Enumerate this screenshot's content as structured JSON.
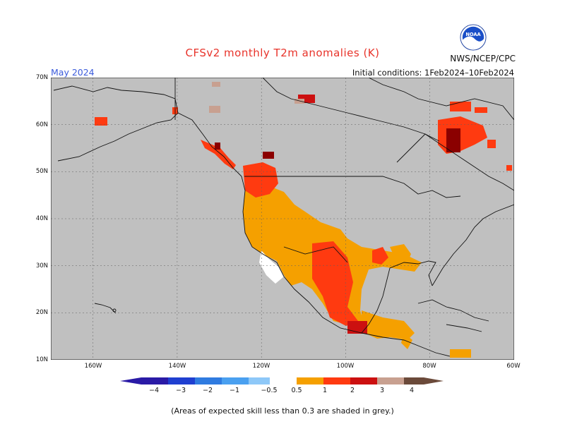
{
  "header": {
    "title": "CFSv2 monthly T2m anomalies (K)",
    "month": "May 2024",
    "initial_conditions": "Initial conditions: 1Feb2024–10Feb2024",
    "agency": "NWS/NCEP/CPC",
    "logo_icon": "noaa-logo-icon",
    "logo_text": "NOAA"
  },
  "map": {
    "projection": "lat-lon",
    "lon_range": [
      -170,
      -60
    ],
    "lat_range": [
      10,
      70
    ],
    "grid": "dashed",
    "lat_labels": [
      "70N",
      "60N",
      "50N",
      "40N",
      "30N",
      "20N",
      "10N"
    ],
    "lon_labels": [
      "160W",
      "140W",
      "120W",
      "100W",
      "80W",
      "60W"
    ],
    "background_color": "#c0c0c0"
  },
  "colorbar": {
    "tick_labels": [
      "−4",
      "−3",
      "−2",
      "−1",
      "−0.5",
      "0.5",
      "1",
      "2",
      "3",
      "4"
    ],
    "colors": [
      "#2a1aa6",
      "#1f3fd0",
      "#2f7be0",
      "#4aa0f0",
      "#8ec8f8",
      "#ffffff",
      "#f5a000",
      "#ff3a10",
      "#cc1010",
      "#8b0000",
      "#c8a090",
      "#6b4a3a"
    ]
  },
  "footnote": "(Areas of expected skill less than 0.3 are shaded in grey.)"
}
